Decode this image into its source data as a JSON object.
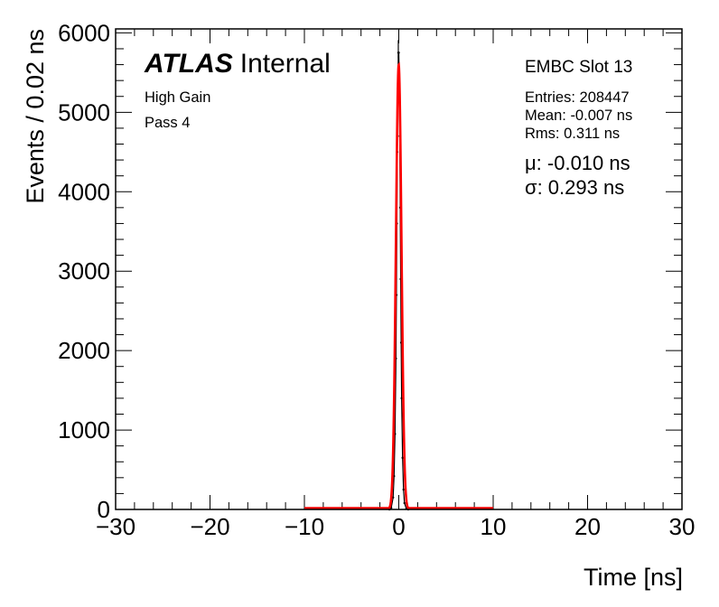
{
  "chart_data": {
    "type": "line",
    "title": "",
    "xlabel": "Time [ns]",
    "ylabel": "Events / 0.02 ns",
    "xlim": [
      -30,
      30
    ],
    "ylim": [
      0,
      6050
    ],
    "x_ticks": [
      -30,
      -20,
      -10,
      0,
      10,
      20,
      30
    ],
    "x_tick_labels": [
      "−30",
      "−20",
      "−10",
      "0",
      "10",
      "20",
      "30"
    ],
    "y_ticks": [
      0,
      1000,
      2000,
      3000,
      4000,
      5000,
      6000
    ],
    "y_tick_labels": [
      "0",
      "1000",
      "2000",
      "3000",
      "4000",
      "5000",
      "6000"
    ],
    "grid": false,
    "series": [
      {
        "color": "#000000",
        "style": "histogram",
        "x": [
          -1.0,
          -0.8,
          -0.6,
          -0.5,
          -0.4,
          -0.3,
          -0.25,
          -0.2,
          -0.15,
          -0.1,
          -0.05,
          0.0,
          0.05,
          0.1,
          0.15,
          0.2,
          0.25,
          0.3,
          0.4,
          0.5,
          0.6,
          0.8,
          1.0
        ],
        "y": [
          0,
          20,
          150,
          420,
          950,
          1900,
          2700,
          3600,
          4500,
          5300,
          5750,
          5750,
          5400,
          4700,
          3800,
          2900,
          2100,
          1400,
          650,
          250,
          80,
          10,
          0
        ]
      },
      {
        "color": "#ff0000",
        "style": "gaussian-fit",
        "mu": -0.01,
        "sigma": 0.293,
        "amplitude": 5600,
        "x_range": [
          -10,
          10
        ]
      }
    ],
    "annotations": {
      "atlas_label": "ATLAS",
      "atlas_suffix": "Internal",
      "gain": "High Gain",
      "pass": "Pass 4",
      "slot": "EMBC Slot 13",
      "entries": "Entries: 208447",
      "mean": "Mean: -0.007 ns",
      "rms": "Rms: 0.311 ns",
      "mu_label": "μ: -0.010 ns",
      "sigma_label": "σ: 0.293 ns"
    },
    "colors": {
      "fit": "#ff0000",
      "data": "#000000"
    }
  }
}
